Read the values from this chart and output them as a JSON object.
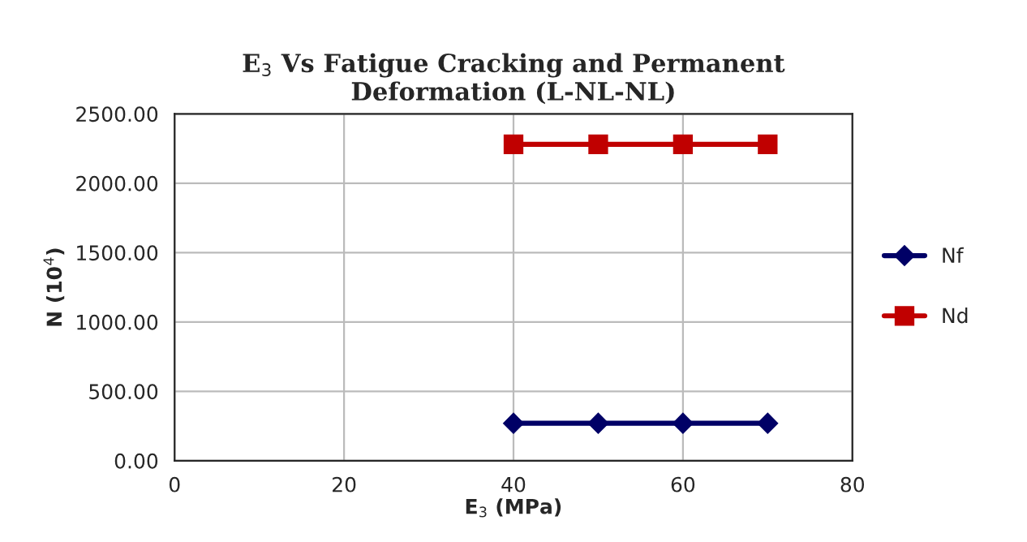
{
  "chart_data": {
    "type": "line",
    "title": "E$_{3}$ Vs Fatigue Cracking and Permanent\nDeformation (L-NL-NL)",
    "xlabel": "E$_{3}$ (MPa)",
    "ylabel": "N (10$^{4}$)",
    "x": [
      40,
      50,
      60,
      70
    ],
    "series": [
      {
        "name": "Nf",
        "color": "#000066",
        "values": [
          270,
          270,
          270,
          270
        ],
        "marker": "diamond"
      },
      {
        "name": "Nd",
        "color": "#c00000",
        "values": [
          2280,
          2280,
          2280,
          2280
        ],
        "marker": "square"
      }
    ],
    "xlim": [
      0,
      80
    ],
    "xticks": [
      0,
      20,
      40,
      60,
      80
    ],
    "ylim": [
      0,
      2500
    ],
    "yticks": [
      {
        "value": 0,
        "label": "0.00"
      },
      {
        "value": 500,
        "label": "500.00"
      },
      {
        "value": 1000,
        "label": "1000.00"
      },
      {
        "value": 1500,
        "label": "1500.00"
      },
      {
        "value": 2000,
        "label": "2000.00"
      },
      {
        "value": 2500,
        "label": "2500.00"
      }
    ],
    "grid": true,
    "legend": "right"
  }
}
